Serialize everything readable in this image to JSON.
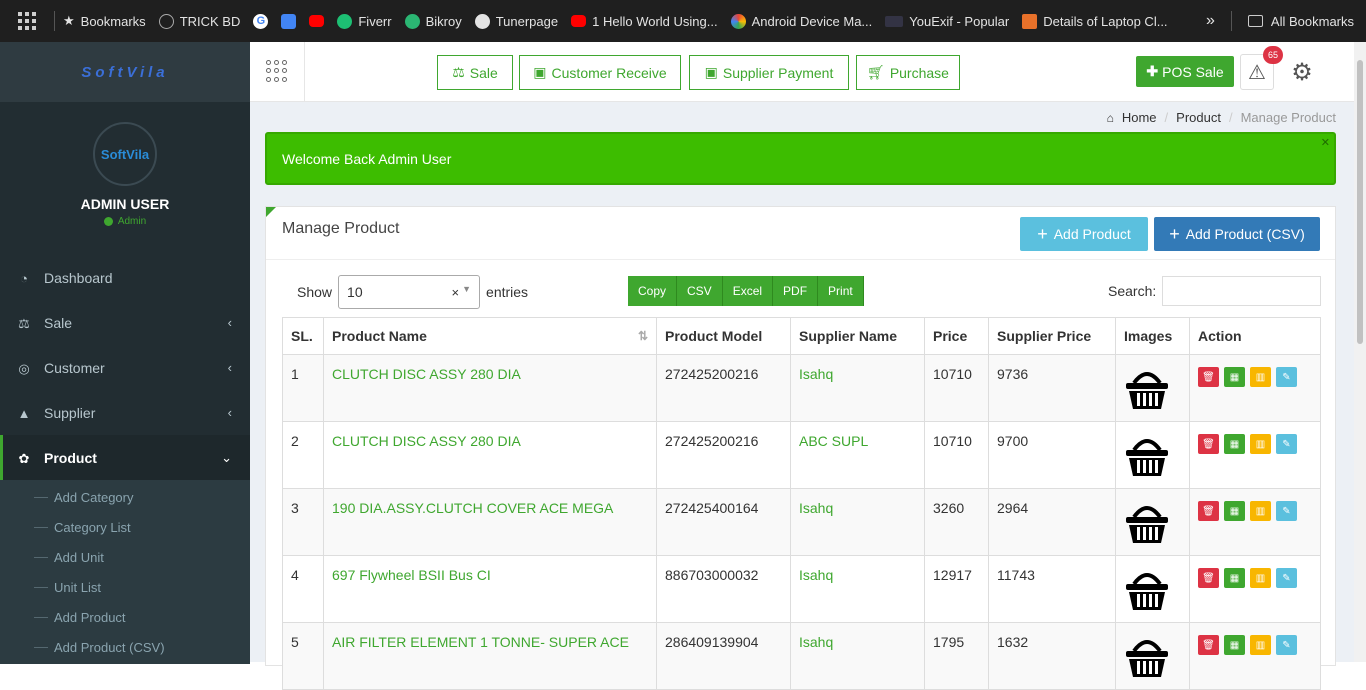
{
  "bookmarks": [
    {
      "label": "Bookmarks",
      "icon": "star-icon"
    },
    {
      "label": "TRICK BD",
      "icon": "trickbd-icon"
    },
    {
      "label": "",
      "icon": "google-icon"
    },
    {
      "label": "",
      "icon": "google-translate-icon"
    },
    {
      "label": "",
      "icon": "youtube-icon"
    },
    {
      "label": "Fiverr",
      "icon": "fiverr-icon"
    },
    {
      "label": "Bikroy",
      "icon": "bikroy-icon"
    },
    {
      "label": "Tunerpage",
      "icon": "globe-icon"
    },
    {
      "label": "1 Hello World Using...",
      "icon": "youtube-icon"
    },
    {
      "label": "Android Device Ma...",
      "icon": "android-icon"
    },
    {
      "label": "YouExif - Popular",
      "icon": "hd-icon"
    },
    {
      "label": "Details of Laptop Cl...",
      "icon": "laptop-icon"
    }
  ],
  "bookmarks_more": "»",
  "all_bookmarks": "All Bookmarks",
  "sidebar": {
    "logo": "SoftVila",
    "avatar_text": "SoftVila",
    "user_name": "ADMIN USER",
    "user_role": "Admin",
    "menu": [
      {
        "label": "Dashboard",
        "icon": "dashboard-icon"
      },
      {
        "label": "Sale",
        "icon": "scale-icon"
      },
      {
        "label": "Customer",
        "icon": "customer-icon"
      },
      {
        "label": "Supplier",
        "icon": "supplier-icon"
      },
      {
        "label": "Product",
        "icon": "product-icon"
      }
    ],
    "submenu": [
      "Add Category",
      "Category List",
      "Add Unit",
      "Unit List",
      "Add Product",
      "Add Product (CSV)"
    ]
  },
  "topnav": {
    "sale": "Sale",
    "customer_receive": "Customer Receive",
    "supplier_payment": "Supplier Payment",
    "purchase": "Purchase",
    "pos_sale": "POS Sale",
    "alert_count": "65"
  },
  "breadcrumb": {
    "home": "Home",
    "product": "Product",
    "current": "Manage Product"
  },
  "welcome": "Welcome Back Admin User",
  "panel": {
    "title": "Manage Product",
    "add_product": "Add Product",
    "add_product_csv": "Add Product (CSV)",
    "show": "Show",
    "entries_value": "10",
    "entries": "entries",
    "export": [
      "Copy",
      "CSV",
      "Excel",
      "PDF",
      "Print"
    ],
    "search_label": "Search:"
  },
  "table": {
    "headers": [
      "SL.",
      "Product Name",
      "Product Model",
      "Supplier Name",
      "Price",
      "Supplier Price",
      "Images",
      "Action"
    ],
    "rows": [
      {
        "sl": "1",
        "name": "CLUTCH DISC ASSY 280 DIA",
        "model": "272425200216",
        "supplier": "Isahq",
        "price": "10710",
        "sprice": "9736"
      },
      {
        "sl": "2",
        "name": "CLUTCH DISC ASSY 280 DIA",
        "model": "272425200216",
        "supplier": "ABC SUPL",
        "price": "10710",
        "sprice": "9700"
      },
      {
        "sl": "3",
        "name": "190 DIA.ASSY.CLUTCH COVER ACE MEGA",
        "model": "272425400164",
        "supplier": "Isahq",
        "price": "3260",
        "sprice": "2964"
      },
      {
        "sl": "4",
        "name": "697 Flywheel BSII Bus CI",
        "model": "886703000032",
        "supplier": "Isahq",
        "price": "12917",
        "sprice": "11743"
      },
      {
        "sl": "5",
        "name": "AIR FILTER ELEMENT 1 TONNE- SUPER ACE",
        "model": "286409139904",
        "supplier": "Isahq",
        "price": "1795",
        "sprice": "1632"
      }
    ]
  },
  "colors": {
    "accent": "#3fa72f",
    "sidebar": "#222d32",
    "welcome": "#3dbd00",
    "info": "#5bc0de",
    "primary": "#337ab7",
    "danger": "#dd3344",
    "warning": "#f8b600"
  }
}
